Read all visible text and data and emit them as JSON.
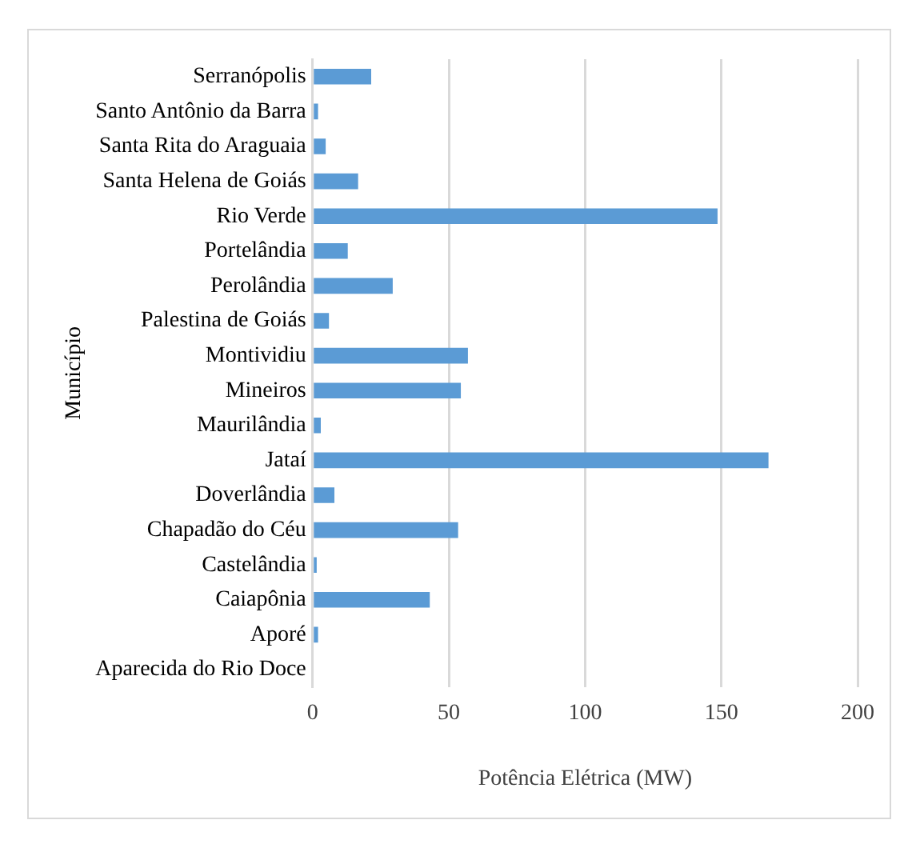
{
  "chart_data": {
    "type": "bar",
    "orientation": "horizontal",
    "xlabel": "Potência Elétrica (MW)",
    "ylabel": "Município",
    "categories": [
      "Serranópolis",
      "Santo Antônio da Barra",
      "Santa Rita do Araguaia",
      "Santa Helena de Goiás",
      "Rio Verde",
      "Portelândia",
      "Perolândia",
      "Palestina de Goiás",
      "Montividiu",
      "Mineiros",
      "Maurilândia",
      "Jataí",
      "Doverlândia",
      "Chapadão do Céu",
      "Castelândia",
      "Caiapônia",
      "Aporé",
      "Aparecida do Rio Doce"
    ],
    "values": [
      21.5,
      2,
      4.8,
      16.7,
      148.6,
      12.9,
      29.4,
      6,
      57,
      54.4,
      3,
      167.3,
      8,
      53.4,
      1.5,
      43,
      2,
      0
    ],
    "color": "#5b9bd5",
    "xlim": [
      0,
      200
    ],
    "xticks": [
      0,
      50,
      100,
      150,
      200
    ],
    "grid": "x",
    "legend": false
  }
}
